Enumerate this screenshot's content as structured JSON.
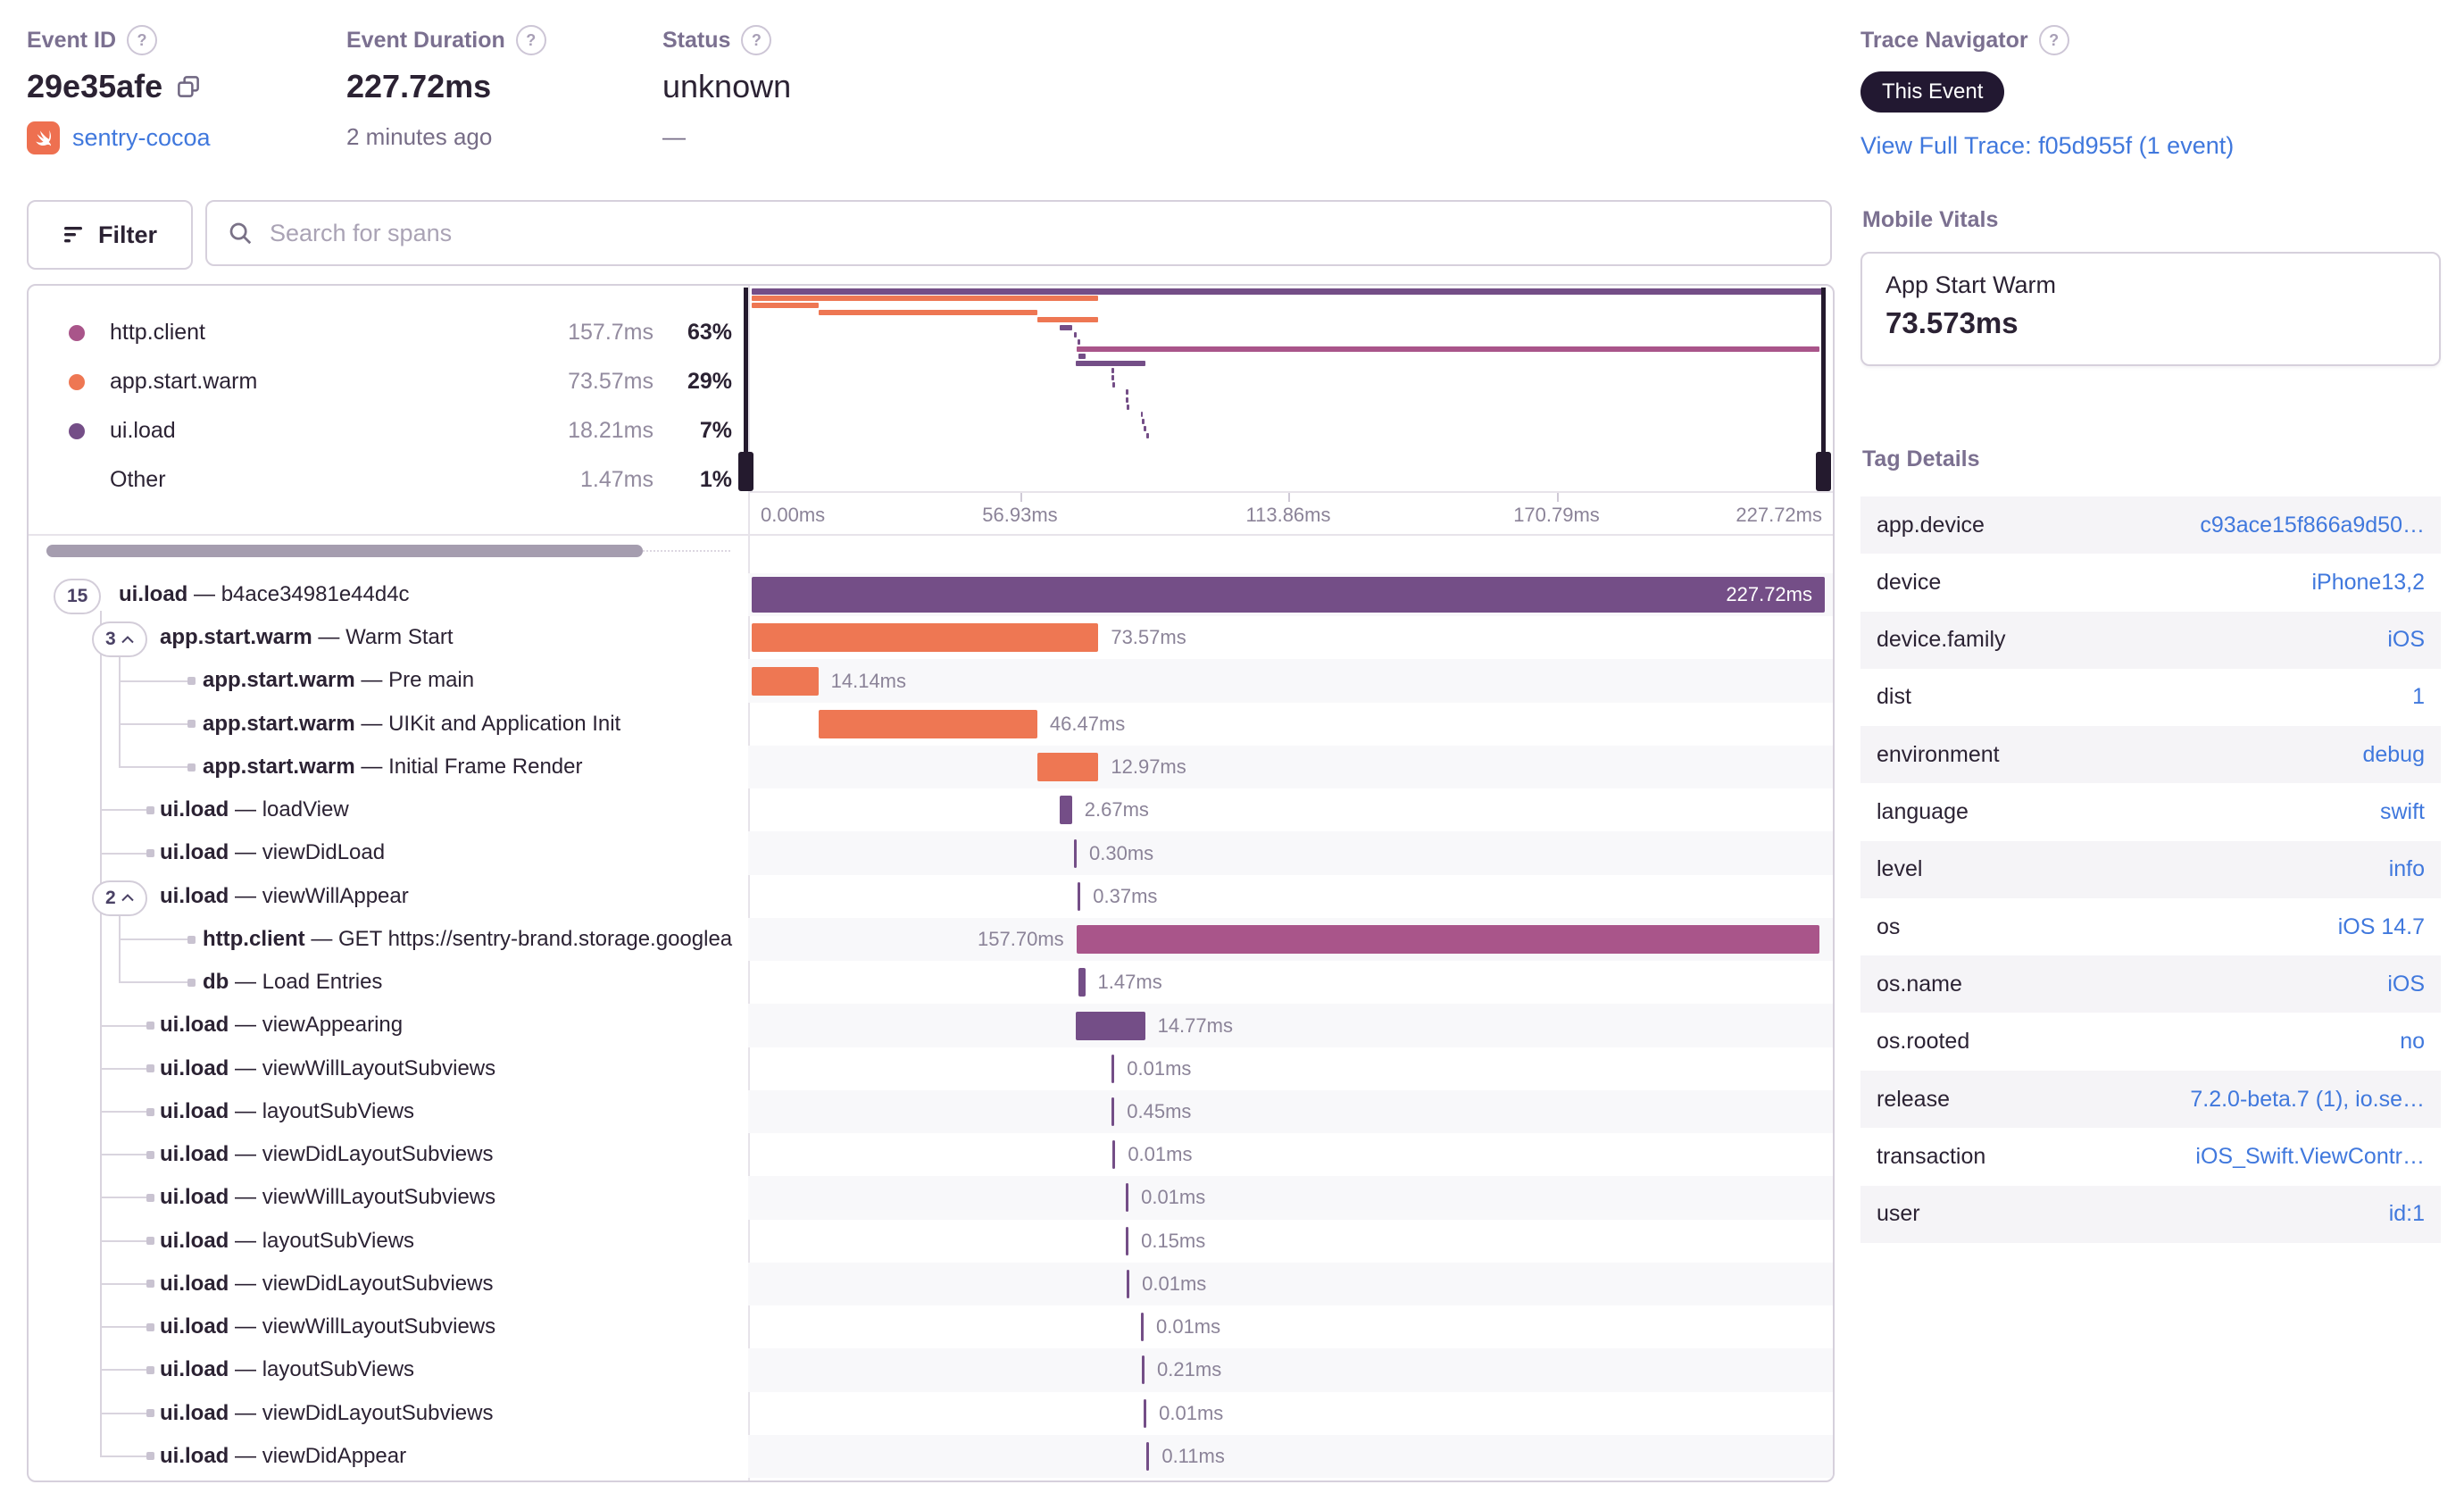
{
  "header": {
    "event_id": {
      "label": "Event ID",
      "value": "29e35afe",
      "project": "sentry-cocoa"
    },
    "event_duration": {
      "label": "Event Duration",
      "value": "227.72ms",
      "subtitle": "2 minutes ago"
    },
    "status": {
      "label": "Status",
      "value": "unknown",
      "subtitle": "—"
    },
    "trace_navigator": {
      "label": "Trace Navigator",
      "badge": "This Event",
      "link": "View Full Trace: f05d955f (1 event)"
    }
  },
  "toolbar": {
    "filter_label": "Filter",
    "search_placeholder": "Search for spans"
  },
  "colors": {
    "purple": "#744e87",
    "orange": "#ee7753",
    "magenta": "#a9558a",
    "blue": "#4078dd"
  },
  "legend": {
    "items": [
      {
        "op": "http.client",
        "duration": "157.7ms",
        "pct": "63%",
        "color": "magenta"
      },
      {
        "op": "app.start.warm",
        "duration": "73.57ms",
        "pct": "29%",
        "color": "orange"
      },
      {
        "op": "ui.load",
        "duration": "18.21ms",
        "pct": "7%",
        "color": "purple"
      },
      {
        "op": "Other",
        "duration": "1.47ms",
        "pct": "1%",
        "color": null
      }
    ]
  },
  "minimap": {
    "axis_ticks": [
      "0.00ms",
      "56.93ms",
      "113.86ms",
      "170.79ms",
      "227.72ms"
    ],
    "total_ms": 227.72
  },
  "spans": {
    "total_ms": 227.72,
    "rows": [
      {
        "op": "ui.load",
        "desc": "b4ace34981e44d4c",
        "duration_label": "227.72ms",
        "start_ms": 0,
        "duration_ms": 227.72,
        "depth": 0,
        "color": "purple",
        "badge": "15",
        "chevron": false,
        "label_pos": "inside"
      },
      {
        "op": "app.start.warm",
        "desc": "Warm Start",
        "duration_label": "73.57ms",
        "start_ms": 0,
        "duration_ms": 73.57,
        "depth": 1,
        "color": "orange",
        "badge": "3",
        "chevron": true,
        "label_pos": "right"
      },
      {
        "op": "app.start.warm",
        "desc": "Pre main",
        "duration_label": "14.14ms",
        "start_ms": 0,
        "duration_ms": 14.14,
        "depth": 2,
        "color": "orange",
        "badge": null,
        "label_pos": "right"
      },
      {
        "op": "app.start.warm",
        "desc": "UIKit and Application Init",
        "duration_label": "46.47ms",
        "start_ms": 14.14,
        "duration_ms": 46.47,
        "depth": 2,
        "color": "orange",
        "badge": null,
        "label_pos": "right"
      },
      {
        "op": "app.start.warm",
        "desc": "Initial Frame Render",
        "duration_label": "12.97ms",
        "start_ms": 60.61,
        "duration_ms": 12.97,
        "depth": 2,
        "color": "orange",
        "badge": null,
        "label_pos": "right"
      },
      {
        "op": "ui.load",
        "desc": "loadView",
        "duration_label": "2.67ms",
        "start_ms": 65.3,
        "duration_ms": 2.67,
        "depth": 1,
        "color": "purple",
        "badge": null,
        "label_pos": "right"
      },
      {
        "op": "ui.load",
        "desc": "viewDidLoad",
        "duration_label": "0.30ms",
        "start_ms": 68.4,
        "duration_ms": 0.3,
        "depth": 1,
        "color": "purple",
        "badge": null,
        "label_pos": "right"
      },
      {
        "op": "ui.load",
        "desc": "viewWillAppear",
        "duration_label": "0.37ms",
        "start_ms": 69.2,
        "duration_ms": 0.37,
        "depth": 1,
        "color": "purple",
        "badge": "2",
        "chevron": true,
        "label_pos": "right"
      },
      {
        "op": "http.client",
        "desc": "GET https://sentry-brand.storage.googlea",
        "duration_label": "157.70ms",
        "start_ms": 68.9,
        "duration_ms": 157.7,
        "depth": 2,
        "color": "magenta",
        "badge": null,
        "label_pos": "left"
      },
      {
        "op": "db",
        "desc": "Load Entries",
        "duration_label": "1.47ms",
        "start_ms": 69.3,
        "duration_ms": 1.47,
        "depth": 2,
        "color": "purple",
        "badge": null,
        "label_pos": "right"
      },
      {
        "op": "ui.load",
        "desc": "viewAppearing",
        "duration_label": "14.77ms",
        "start_ms": 68.7,
        "duration_ms": 14.77,
        "depth": 1,
        "color": "purple",
        "badge": null,
        "label_pos": "right"
      },
      {
        "op": "ui.load",
        "desc": "viewWillLayoutSubviews",
        "duration_label": "0.01ms",
        "start_ms": 76.4,
        "duration_ms": 0.01,
        "depth": 1,
        "color": "purple",
        "badge": null,
        "label_pos": "right"
      },
      {
        "op": "ui.load",
        "desc": "layoutSubViews",
        "duration_label": "0.45ms",
        "start_ms": 76.4,
        "duration_ms": 0.45,
        "depth": 1,
        "color": "purple",
        "badge": null,
        "label_pos": "right"
      },
      {
        "op": "ui.load",
        "desc": "viewDidLayoutSubviews",
        "duration_label": "0.01ms",
        "start_ms": 76.6,
        "duration_ms": 0.01,
        "depth": 1,
        "color": "purple",
        "badge": null,
        "label_pos": "right"
      },
      {
        "op": "ui.load",
        "desc": "viewWillLayoutSubviews",
        "duration_label": "0.01ms",
        "start_ms": 79.4,
        "duration_ms": 0.01,
        "depth": 1,
        "color": "purple",
        "badge": null,
        "label_pos": "right"
      },
      {
        "op": "ui.load",
        "desc": "layoutSubViews",
        "duration_label": "0.15ms",
        "start_ms": 79.4,
        "duration_ms": 0.15,
        "depth": 1,
        "color": "purple",
        "badge": null,
        "label_pos": "right"
      },
      {
        "op": "ui.load",
        "desc": "viewDidLayoutSubviews",
        "duration_label": "0.01ms",
        "start_ms": 79.6,
        "duration_ms": 0.01,
        "depth": 1,
        "color": "purple",
        "badge": null,
        "label_pos": "right"
      },
      {
        "op": "ui.load",
        "desc": "viewWillLayoutSubviews",
        "duration_label": "0.01ms",
        "start_ms": 82.6,
        "duration_ms": 0.01,
        "depth": 1,
        "color": "purple",
        "badge": null,
        "label_pos": "right"
      },
      {
        "op": "ui.load",
        "desc": "layoutSubViews",
        "duration_label": "0.21ms",
        "start_ms": 82.8,
        "duration_ms": 0.21,
        "depth": 1,
        "color": "purple",
        "badge": null,
        "label_pos": "right"
      },
      {
        "op": "ui.load",
        "desc": "viewDidLayoutSubviews",
        "duration_label": "0.01ms",
        "start_ms": 83.2,
        "duration_ms": 0.01,
        "depth": 1,
        "color": "purple",
        "badge": null,
        "label_pos": "right"
      },
      {
        "op": "ui.load",
        "desc": "viewDidAppear",
        "duration_label": "0.11ms",
        "start_ms": 83.8,
        "duration_ms": 0.11,
        "depth": 1,
        "color": "purple",
        "badge": null,
        "label_pos": "right"
      }
    ]
  },
  "sidebar": {
    "mobile_vitals": {
      "title": "Mobile Vitals",
      "card_title": "App Start Warm",
      "card_value": "73.573ms"
    },
    "tag_details": {
      "title": "Tag Details",
      "rows": [
        {
          "key": "app.device",
          "value": "c93ace15f866a9d50…"
        },
        {
          "key": "device",
          "value": "iPhone13,2"
        },
        {
          "key": "device.family",
          "value": "iOS"
        },
        {
          "key": "dist",
          "value": "1"
        },
        {
          "key": "environment",
          "value": "debug"
        },
        {
          "key": "language",
          "value": "swift"
        },
        {
          "key": "level",
          "value": "info"
        },
        {
          "key": "os",
          "value": "iOS 14.7"
        },
        {
          "key": "os.name",
          "value": "iOS"
        },
        {
          "key": "os.rooted",
          "value": "no"
        },
        {
          "key": "release",
          "value": "7.2.0-beta.7 (1), io.se…"
        },
        {
          "key": "transaction",
          "value": "iOS_Swift.ViewContr…"
        },
        {
          "key": "user",
          "value": "id:1"
        }
      ]
    }
  }
}
